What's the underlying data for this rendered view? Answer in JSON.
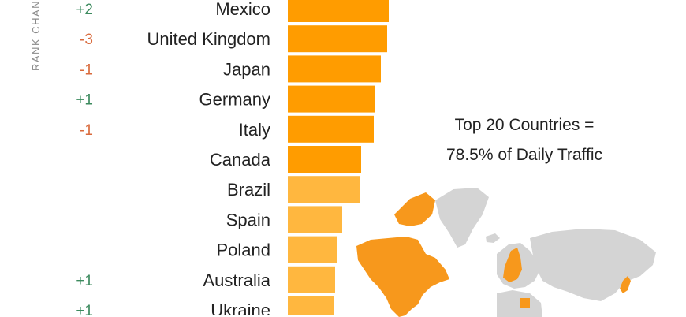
{
  "rank_axis_label": "RANK CHANGE",
  "annotation": {
    "line1": "Top 20 Countries =",
    "line2": "78.5% of Daily Traffic"
  },
  "colors": {
    "bar_dark": "#ff9c00",
    "bar_light": "#ffb73f",
    "positive": "#3c8a5e",
    "negative": "#d96a3c",
    "map_highlight": "#f7981c",
    "map_land": "#d4d4d4"
  },
  "chart_data": {
    "type": "bar",
    "orientation": "horizontal",
    "categories": [
      "Mexico",
      "United Kingdom",
      "Japan",
      "Germany",
      "Italy",
      "Canada",
      "Brazil",
      "Spain",
      "Poland",
      "Australia",
      "Ukraine"
    ],
    "values": [
      128,
      126,
      118,
      110,
      109,
      93,
      92,
      69,
      62,
      60,
      59
    ],
    "rank_change": [
      "+2",
      "-3",
      "-1",
      "+1",
      "-1",
      "",
      "",
      "",
      "",
      "+1",
      "+1"
    ],
    "xlim": [
      0,
      130
    ]
  }
}
